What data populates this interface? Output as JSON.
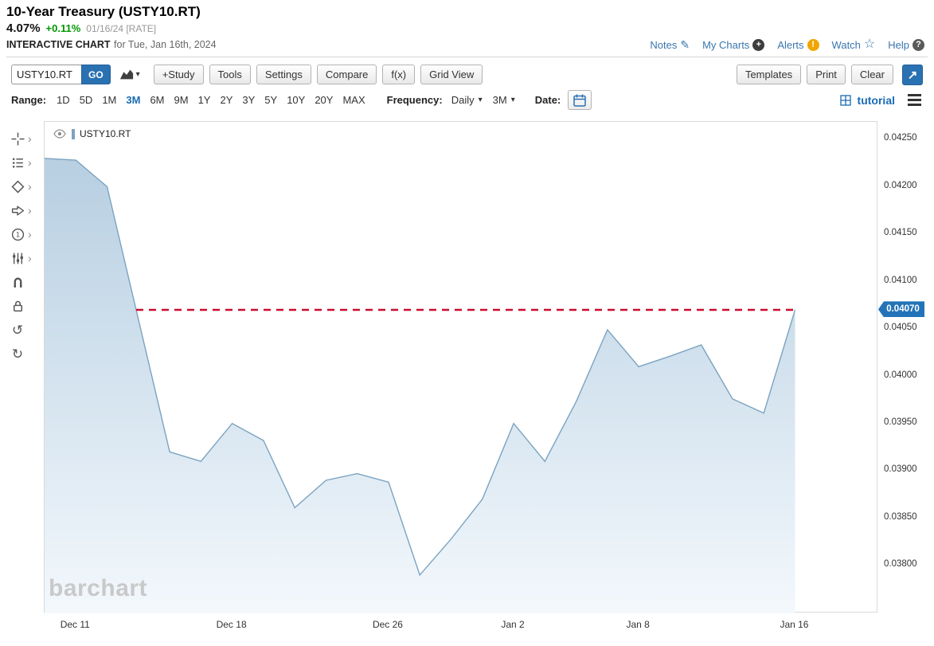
{
  "header": {
    "title": "10-Year Treasury (USTY10.RT)",
    "price": "4.07%",
    "change": "+0.11%",
    "quote_meta": "01/16/24 [RATE]",
    "interactive_chart_label": "INTERACTIVE CHART",
    "chart_date_label": "for Tue, Jan 16th, 2024",
    "links": [
      {
        "label": "Notes",
        "icon": "notes-pencil-icon"
      },
      {
        "label": "My Charts",
        "icon": "plus-circle-icon"
      },
      {
        "label": "Alerts",
        "icon": "alert-circle-icon"
      },
      {
        "label": "Watch",
        "icon": "watch-star-icon"
      },
      {
        "label": "Help",
        "icon": "help-circle-icon"
      }
    ]
  },
  "toolbar": {
    "symbol_value": "USTY10.RT",
    "go_label": "GO",
    "left_buttons": [
      "+Study",
      "Tools",
      "Settings",
      "Compare",
      "f(x)",
      "Grid View"
    ],
    "right_buttons": [
      "Templates",
      "Print",
      "Clear"
    ]
  },
  "range_row": {
    "range_label": "Range:",
    "ranges": [
      "1D",
      "5D",
      "1M",
      "3M",
      "6M",
      "9M",
      "1Y",
      "2Y",
      "3Y",
      "5Y",
      "10Y",
      "20Y",
      "MAX"
    ],
    "selected_range": "3M",
    "frequency_label": "Frequency:",
    "frequency_value": "Daily",
    "period_value": "3M",
    "date_label": "Date:",
    "tutorial_label": "tutorial"
  },
  "sidebar_tools": [
    {
      "name": "crosshair-tool",
      "expandable": true
    },
    {
      "name": "annotation-tool",
      "expandable": true
    },
    {
      "name": "shapes-tool",
      "expandable": true
    },
    {
      "name": "arrow-tool",
      "expandable": true
    },
    {
      "name": "counter-tool",
      "expandable": true
    },
    {
      "name": "sliders-tool",
      "expandable": true
    },
    {
      "name": "magnet-tool",
      "expandable": false
    },
    {
      "name": "lock-tool",
      "expandable": false
    },
    {
      "name": "undo-tool",
      "expandable": false
    },
    {
      "name": "redo-tool",
      "expandable": false
    }
  ],
  "chart": {
    "series_label": "USTY10.RT",
    "watermark": "barchart",
    "hline_tag": "0.04070"
  },
  "chart_data": {
    "type": "area",
    "title": "10-Year Treasury (USTY10.RT) daily yield",
    "x": [
      "Dec 8",
      "Dec 11",
      "Dec 12",
      "Dec 13",
      "Dec 14",
      "Dec 15",
      "Dec 18",
      "Dec 19",
      "Dec 20",
      "Dec 21",
      "Dec 22",
      "Dec 26",
      "Dec 27",
      "Dec 28",
      "Dec 29",
      "Jan 2",
      "Jan 3",
      "Jan 4",
      "Jan 5",
      "Jan 8",
      "Jan 9",
      "Jan 10",
      "Jan 11",
      "Jan 12",
      "Jan 16"
    ],
    "values": [
      0.0423,
      0.04228,
      0.042,
      0.0406,
      0.0392,
      0.0391,
      0.0395,
      0.03932,
      0.03861,
      0.0389,
      0.03897,
      0.03888,
      0.0379,
      0.03828,
      0.0387,
      0.0395,
      0.0391,
      0.03973,
      0.04049,
      0.0401,
      0.04021,
      0.04033,
      0.03976,
      0.03961,
      0.0407
    ],
    "y_ticks": [
      "0.04250",
      "0.04200",
      "0.04150",
      "0.04100",
      "0.04050",
      "0.04000",
      "0.03950",
      "0.03900",
      "0.03850",
      "0.03800"
    ],
    "x_ticks": [
      {
        "label": "Dec 11",
        "index": 1
      },
      {
        "label": "Dec 18",
        "index": 6
      },
      {
        "label": "Dec 26",
        "index": 11
      },
      {
        "label": "Jan 2",
        "index": 15
      },
      {
        "label": "Jan 8",
        "index": 19
      },
      {
        "label": "Jan 16",
        "index": 24
      }
    ],
    "ylim": [
      0.037495,
      0.042685
    ],
    "grid": false,
    "legend": false,
    "hline": {
      "value": 0.0407,
      "label": "0.04070",
      "style": "dashed",
      "color": "#cc0c2f"
    }
  },
  "colors": {
    "accent_blue": "#2a71b2",
    "link_blue": "#3a76ad",
    "selected_range_blue": "#1a6bb5",
    "change_green": "#009900",
    "series_line": "#7ba3c0",
    "series_fill_top": "#b7cfe2",
    "series_fill_bottom": "#f3f8fc",
    "hline_red": "#cc0c2f",
    "tag_bg": "#2273b8",
    "alert_orange": "#f0a500"
  }
}
